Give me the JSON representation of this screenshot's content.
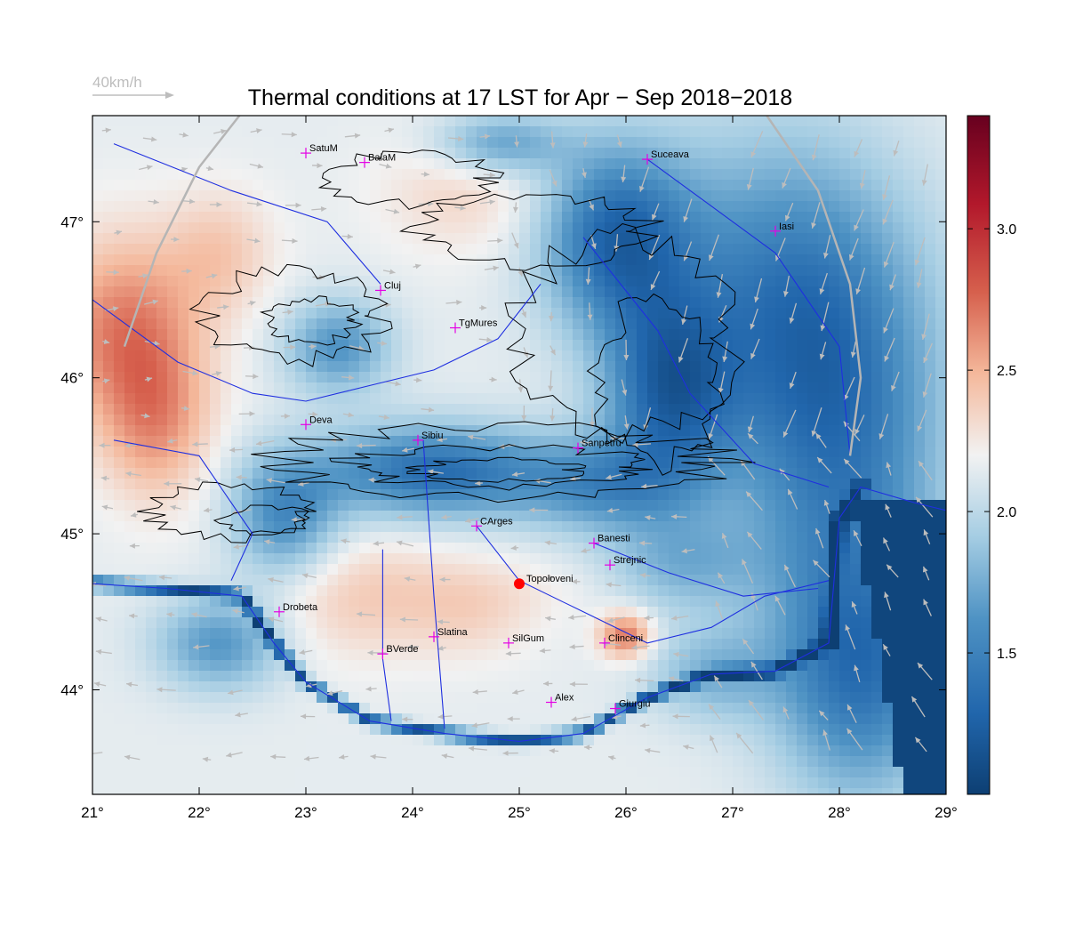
{
  "title": "Thermal conditions at 17 LST for Apr − Sep  2018−2018",
  "wind_scale": {
    "label": "40km/h",
    "color": "#bdbdbd"
  },
  "map": {
    "lon_range": [
      21.0,
      29.0
    ],
    "lat_range": [
      43.33,
      47.68
    ],
    "lon_ticks": [
      {
        "value": 21,
        "label": "21°"
      },
      {
        "value": 22,
        "label": "22°"
      },
      {
        "value": 23,
        "label": "23°"
      },
      {
        "value": 24,
        "label": "24°"
      },
      {
        "value": 25,
        "label": "25°"
      },
      {
        "value": 26,
        "label": "26°"
      },
      {
        "value": 27,
        "label": "27°"
      },
      {
        "value": 28,
        "label": "28°"
      },
      {
        "value": 29,
        "label": "29°"
      }
    ],
    "lat_ticks": [
      {
        "value": 44,
        "label": "44°"
      },
      {
        "value": 45,
        "label": "45°"
      },
      {
        "value": 46,
        "label": "46°"
      },
      {
        "value": 47,
        "label": "47°"
      }
    ],
    "colors": {
      "low": "#0d3f73",
      "mid": "#f7f7f7",
      "high": "#67001f",
      "border": "#b5b5b5",
      "river": "#1f2fe0",
      "contour": "#000000",
      "coast": "#00e5ee",
      "marker": "#e400e4",
      "highlight": "#ff0000"
    }
  },
  "colorbar": {
    "min": 1.0,
    "max": 3.4,
    "ticks": [
      {
        "value": 1.5,
        "label": "1.5"
      },
      {
        "value": 2.0,
        "label": "2.0"
      },
      {
        "value": 2.5,
        "label": "2.5"
      },
      {
        "value": 3.0,
        "label": "3.0"
      }
    ]
  },
  "cities": [
    {
      "name": "SatuM",
      "lon": 23.0,
      "lat": 47.44
    },
    {
      "name": "BaiaM",
      "lon": 23.55,
      "lat": 47.38
    },
    {
      "name": "Suceava",
      "lon": 26.2,
      "lat": 47.4
    },
    {
      "name": "Iasi",
      "lon": 27.4,
      "lat": 46.94
    },
    {
      "name": "Cluj",
      "lon": 23.7,
      "lat": 46.56
    },
    {
      "name": "TgMures",
      "lon": 24.4,
      "lat": 46.32
    },
    {
      "name": "Deva",
      "lon": 23.0,
      "lat": 45.7
    },
    {
      "name": "Sibiu",
      "lon": 24.05,
      "lat": 45.6
    },
    {
      "name": "Sanpetru",
      "lon": 25.55,
      "lat": 45.55
    },
    {
      "name": "CArges",
      "lon": 24.6,
      "lat": 45.05
    },
    {
      "name": "Banesti",
      "lon": 25.7,
      "lat": 44.94
    },
    {
      "name": "Strejnic",
      "lon": 25.85,
      "lat": 44.8
    },
    {
      "name": "Drobeta",
      "lon": 22.75,
      "lat": 44.5
    },
    {
      "name": "Slatina",
      "lon": 24.2,
      "lat": 44.34
    },
    {
      "name": "SilGum",
      "lon": 24.9,
      "lat": 44.3
    },
    {
      "name": "Clinceni",
      "lon": 25.8,
      "lat": 44.3
    },
    {
      "name": "BVerde",
      "lon": 23.72,
      "lat": 44.23
    },
    {
      "name": "Alex",
      "lon": 25.3,
      "lat": 43.92
    },
    {
      "name": "Giurgiu",
      "lon": 25.9,
      "lat": 43.88
    }
  ],
  "highlight_site": {
    "name": "Topoloveni",
    "lon": 25.0,
    "lat": 44.68
  }
}
